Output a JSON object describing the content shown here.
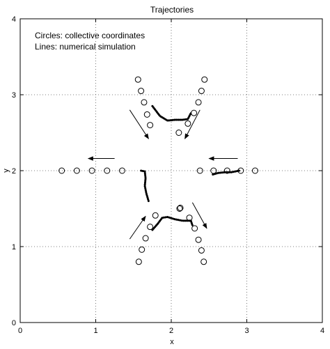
{
  "chart_data": {
    "type": "scatter",
    "title": "Trajectories",
    "xlabel": "x",
    "ylabel": "y",
    "xlim": [
      0,
      4
    ],
    "ylim": [
      0,
      4
    ],
    "xticks": [
      0,
      1,
      2,
      3,
      4
    ],
    "yticks": [
      0,
      1,
      2,
      3,
      4
    ],
    "grid": true,
    "annotations": [
      "Circles: collective coordinates",
      "Lines: numerical simulation"
    ],
    "series": [
      {
        "name": "Circles: collective coordinates",
        "marker": "open-circle",
        "points": [
          [
            1.56,
            3.2
          ],
          [
            1.6,
            3.05
          ],
          [
            1.64,
            2.9
          ],
          [
            1.68,
            2.74
          ],
          [
            1.72,
            2.6
          ],
          [
            2.44,
            3.2
          ],
          [
            2.4,
            3.05
          ],
          [
            2.36,
            2.9
          ],
          [
            2.3,
            2.76
          ],
          [
            2.22,
            2.62
          ],
          [
            2.1,
            2.5
          ],
          [
            0.55,
            2.0
          ],
          [
            0.75,
            2.0
          ],
          [
            0.95,
            2.0
          ],
          [
            1.15,
            2.0
          ],
          [
            1.35,
            2.0
          ],
          [
            2.38,
            2.0
          ],
          [
            2.56,
            2.0
          ],
          [
            2.74,
            2.0
          ],
          [
            2.92,
            2.0
          ],
          [
            3.11,
            2.0
          ],
          [
            1.79,
            1.41
          ],
          [
            1.72,
            1.26
          ],
          [
            1.66,
            1.11
          ],
          [
            1.61,
            0.96
          ],
          [
            1.57,
            0.8
          ],
          [
            2.12,
            1.51
          ],
          [
            2.11,
            1.5
          ],
          [
            2.24,
            1.38
          ],
          [
            2.31,
            1.24
          ],
          [
            2.36,
            1.09
          ],
          [
            2.4,
            0.95
          ],
          [
            2.43,
            0.8
          ]
        ]
      },
      {
        "name": "Lines: numerical simulation",
        "marker": "line",
        "lines": [
          [
            [
              1.75,
              2.85
            ],
            [
              1.85,
              2.72
            ],
            [
              1.95,
              2.66
            ],
            [
              2.05,
              2.67
            ],
            [
              2.15,
              2.67
            ],
            [
              2.22,
              2.68
            ],
            [
              2.26,
              2.76
            ]
          ],
          [
            [
              2.55,
              1.95
            ],
            [
              2.62,
              1.97
            ],
            [
              2.72,
              1.98
            ],
            [
              2.8,
              1.98
            ],
            [
              2.9,
              2.0
            ]
          ],
          [
            [
              1.6,
              2.0
            ],
            [
              1.65,
              1.99
            ],
            [
              1.66,
              1.9
            ],
            [
              1.65,
              1.8
            ],
            [
              1.67,
              1.7
            ],
            [
              1.7,
              1.6
            ]
          ],
          [
            [
              1.75,
              1.22
            ],
            [
              1.82,
              1.3
            ],
            [
              1.88,
              1.38
            ],
            [
              1.95,
              1.39
            ],
            [
              2.05,
              1.36
            ],
            [
              2.15,
              1.34
            ],
            [
              2.26,
              1.34
            ],
            [
              2.28,
              1.28
            ]
          ]
        ]
      },
      {
        "name": "",
        "marker": "arrow",
        "arrows": [
          [
            [
              1.45,
              2.8
            ],
            [
              1.7,
              2.42
            ]
          ],
          [
            [
              2.38,
              2.8
            ],
            [
              2.18,
              2.42
            ]
          ],
          [
            [
              1.25,
              2.16
            ],
            [
              0.9,
              2.16
            ]
          ],
          [
            [
              2.88,
              2.16
            ],
            [
              2.5,
              2.16
            ]
          ],
          [
            [
              1.45,
              1.1
            ],
            [
              1.66,
              1.4
            ]
          ],
          [
            [
              2.28,
              1.58
            ],
            [
              2.47,
              1.24
            ]
          ]
        ]
      }
    ]
  }
}
